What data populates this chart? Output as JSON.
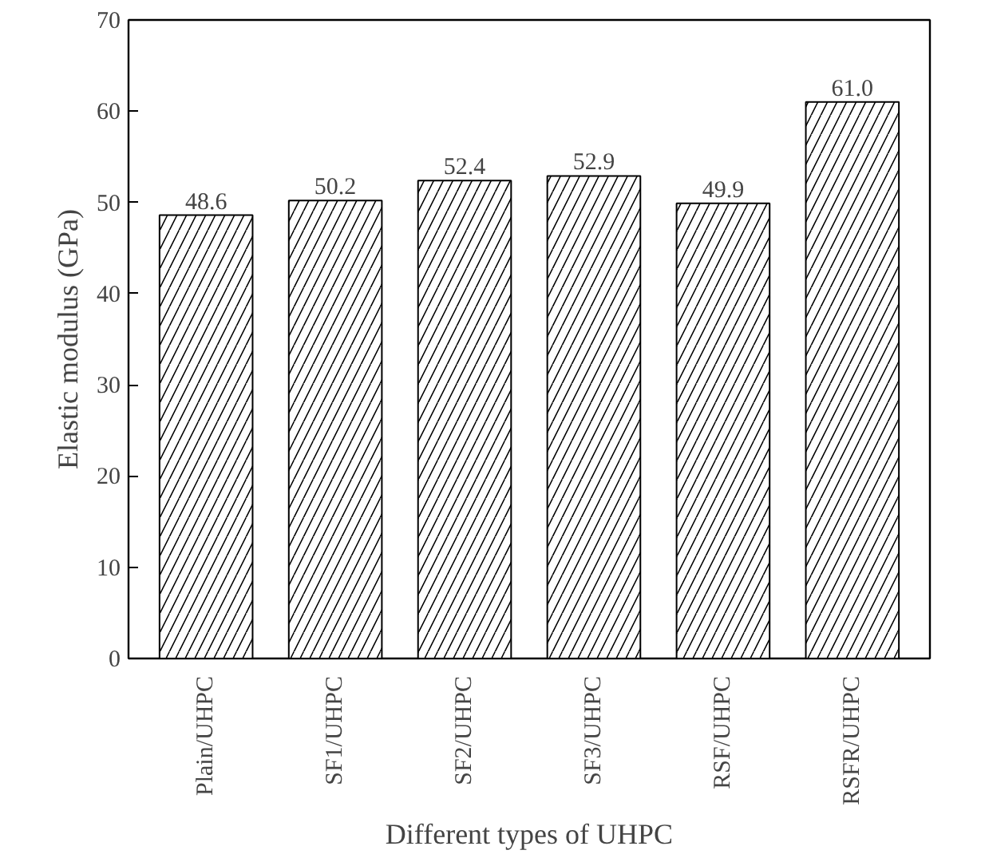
{
  "chart_data": {
    "type": "bar",
    "xlabel": "Different types of UHPC",
    "ylabel": "Elastic modulus (GPa)",
    "categories": [
      "Plain/UHPC",
      "SF1/UHPC",
      "SF2/UHPC",
      "SF3/UHPC",
      "RSF/UHPC",
      "RSFR/UHPC"
    ],
    "values": [
      48.6,
      50.2,
      52.4,
      52.9,
      49.9,
      61.0
    ],
    "value_labels": [
      "48.6",
      "50.2",
      "52.4",
      "52.9",
      "49.9",
      "61.0"
    ],
    "color": "#ffffff",
    "ylim": [
      0,
      70
    ],
    "yticks": [
      0,
      10,
      20,
      30,
      40,
      50,
      60,
      70
    ],
    "grid": false
  }
}
